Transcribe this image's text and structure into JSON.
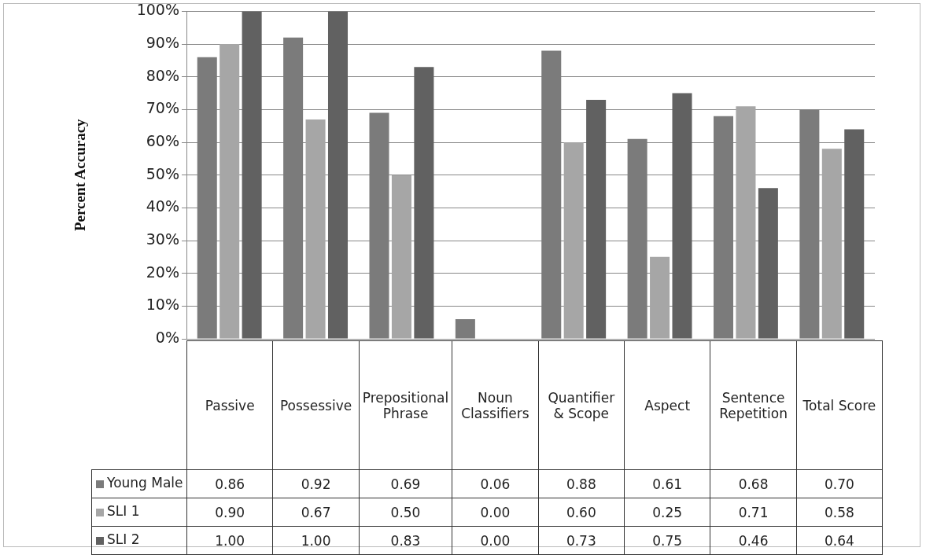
{
  "chart_data": {
    "type": "bar",
    "ylabel": "Percent Accuracy",
    "categories": [
      "Passive",
      "Possessive",
      "Prepositional Phrase",
      "Noun Classifiers",
      "Quantifier & Scope",
      "Aspect",
      "Sentence Repetition",
      "Total Score"
    ],
    "series": [
      {
        "name": "Young Male",
        "color": "#7b7b7b",
        "values": [
          0.86,
          0.92,
          0.69,
          0.06,
          0.88,
          0.61,
          0.68,
          0.7
        ],
        "value_labels": [
          "0.86",
          "0.92",
          "0.69",
          "0.06",
          "0.88",
          "0.61",
          "0.68",
          "0.70"
        ]
      },
      {
        "name": "SLI 1",
        "color": "#a6a6a6",
        "values": [
          0.9,
          0.67,
          0.5,
          0.0,
          0.6,
          0.25,
          0.71,
          0.58
        ],
        "value_labels": [
          "0.90",
          "0.67",
          "0.50",
          "0.00",
          "0.60",
          "0.25",
          "0.71",
          "0.58"
        ]
      },
      {
        "name": "SLI 2",
        "color": "#616161",
        "values": [
          1.0,
          1.0,
          0.83,
          0.0,
          0.73,
          0.75,
          0.46,
          0.64
        ],
        "value_labels": [
          "1.00",
          "1.00",
          "0.83",
          "0.00",
          "0.73",
          "0.75",
          "0.46",
          "0.64"
        ]
      }
    ],
    "ylim": [
      0,
      1
    ],
    "yticks": [
      {
        "value": 0,
        "label": "0%"
      },
      {
        "value": 0.1,
        "label": "10%"
      },
      {
        "value": 0.2,
        "label": "20%"
      },
      {
        "value": 0.3,
        "label": "30%"
      },
      {
        "value": 0.4,
        "label": "40%"
      },
      {
        "value": 0.5,
        "label": "50%"
      },
      {
        "value": 0.6,
        "label": "60%"
      },
      {
        "value": 0.7,
        "label": "70%"
      },
      {
        "value": 0.8,
        "label": "80%"
      },
      {
        "value": 0.9,
        "label": "90%"
      },
      {
        "value": 1,
        "label": "100%"
      }
    ],
    "grid": "y",
    "legend": "bottom"
  }
}
